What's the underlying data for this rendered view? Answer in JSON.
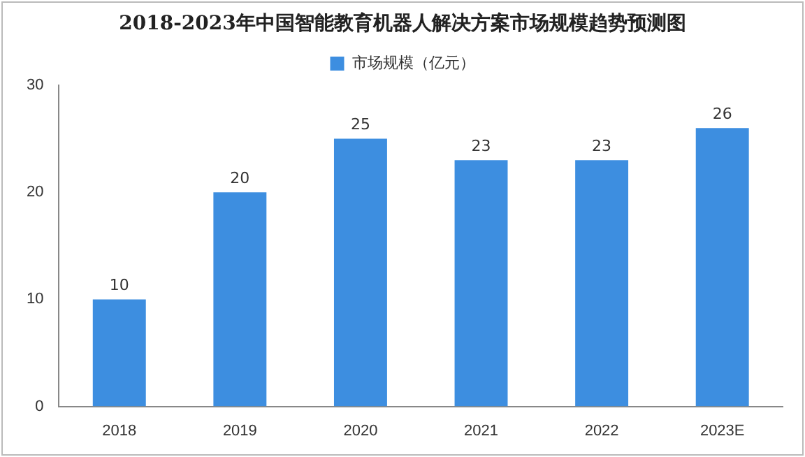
{
  "chart_data": {
    "type": "bar",
    "title": "2018-2023年中国智能教育机器人解决方案市场规模趋势预测图",
    "categories": [
      "2018",
      "2019",
      "2020",
      "2021",
      "2022",
      "2023E"
    ],
    "series": [
      {
        "name": "市场规模（亿元）",
        "color": "#3d8ee0",
        "values": [
          10,
          20,
          25,
          23,
          23,
          26
        ]
      }
    ],
    "ylim": [
      0,
      30
    ],
    "yticks": [
      0,
      10,
      20,
      30
    ],
    "grid": false,
    "legend": "top",
    "data_labels": true
  }
}
